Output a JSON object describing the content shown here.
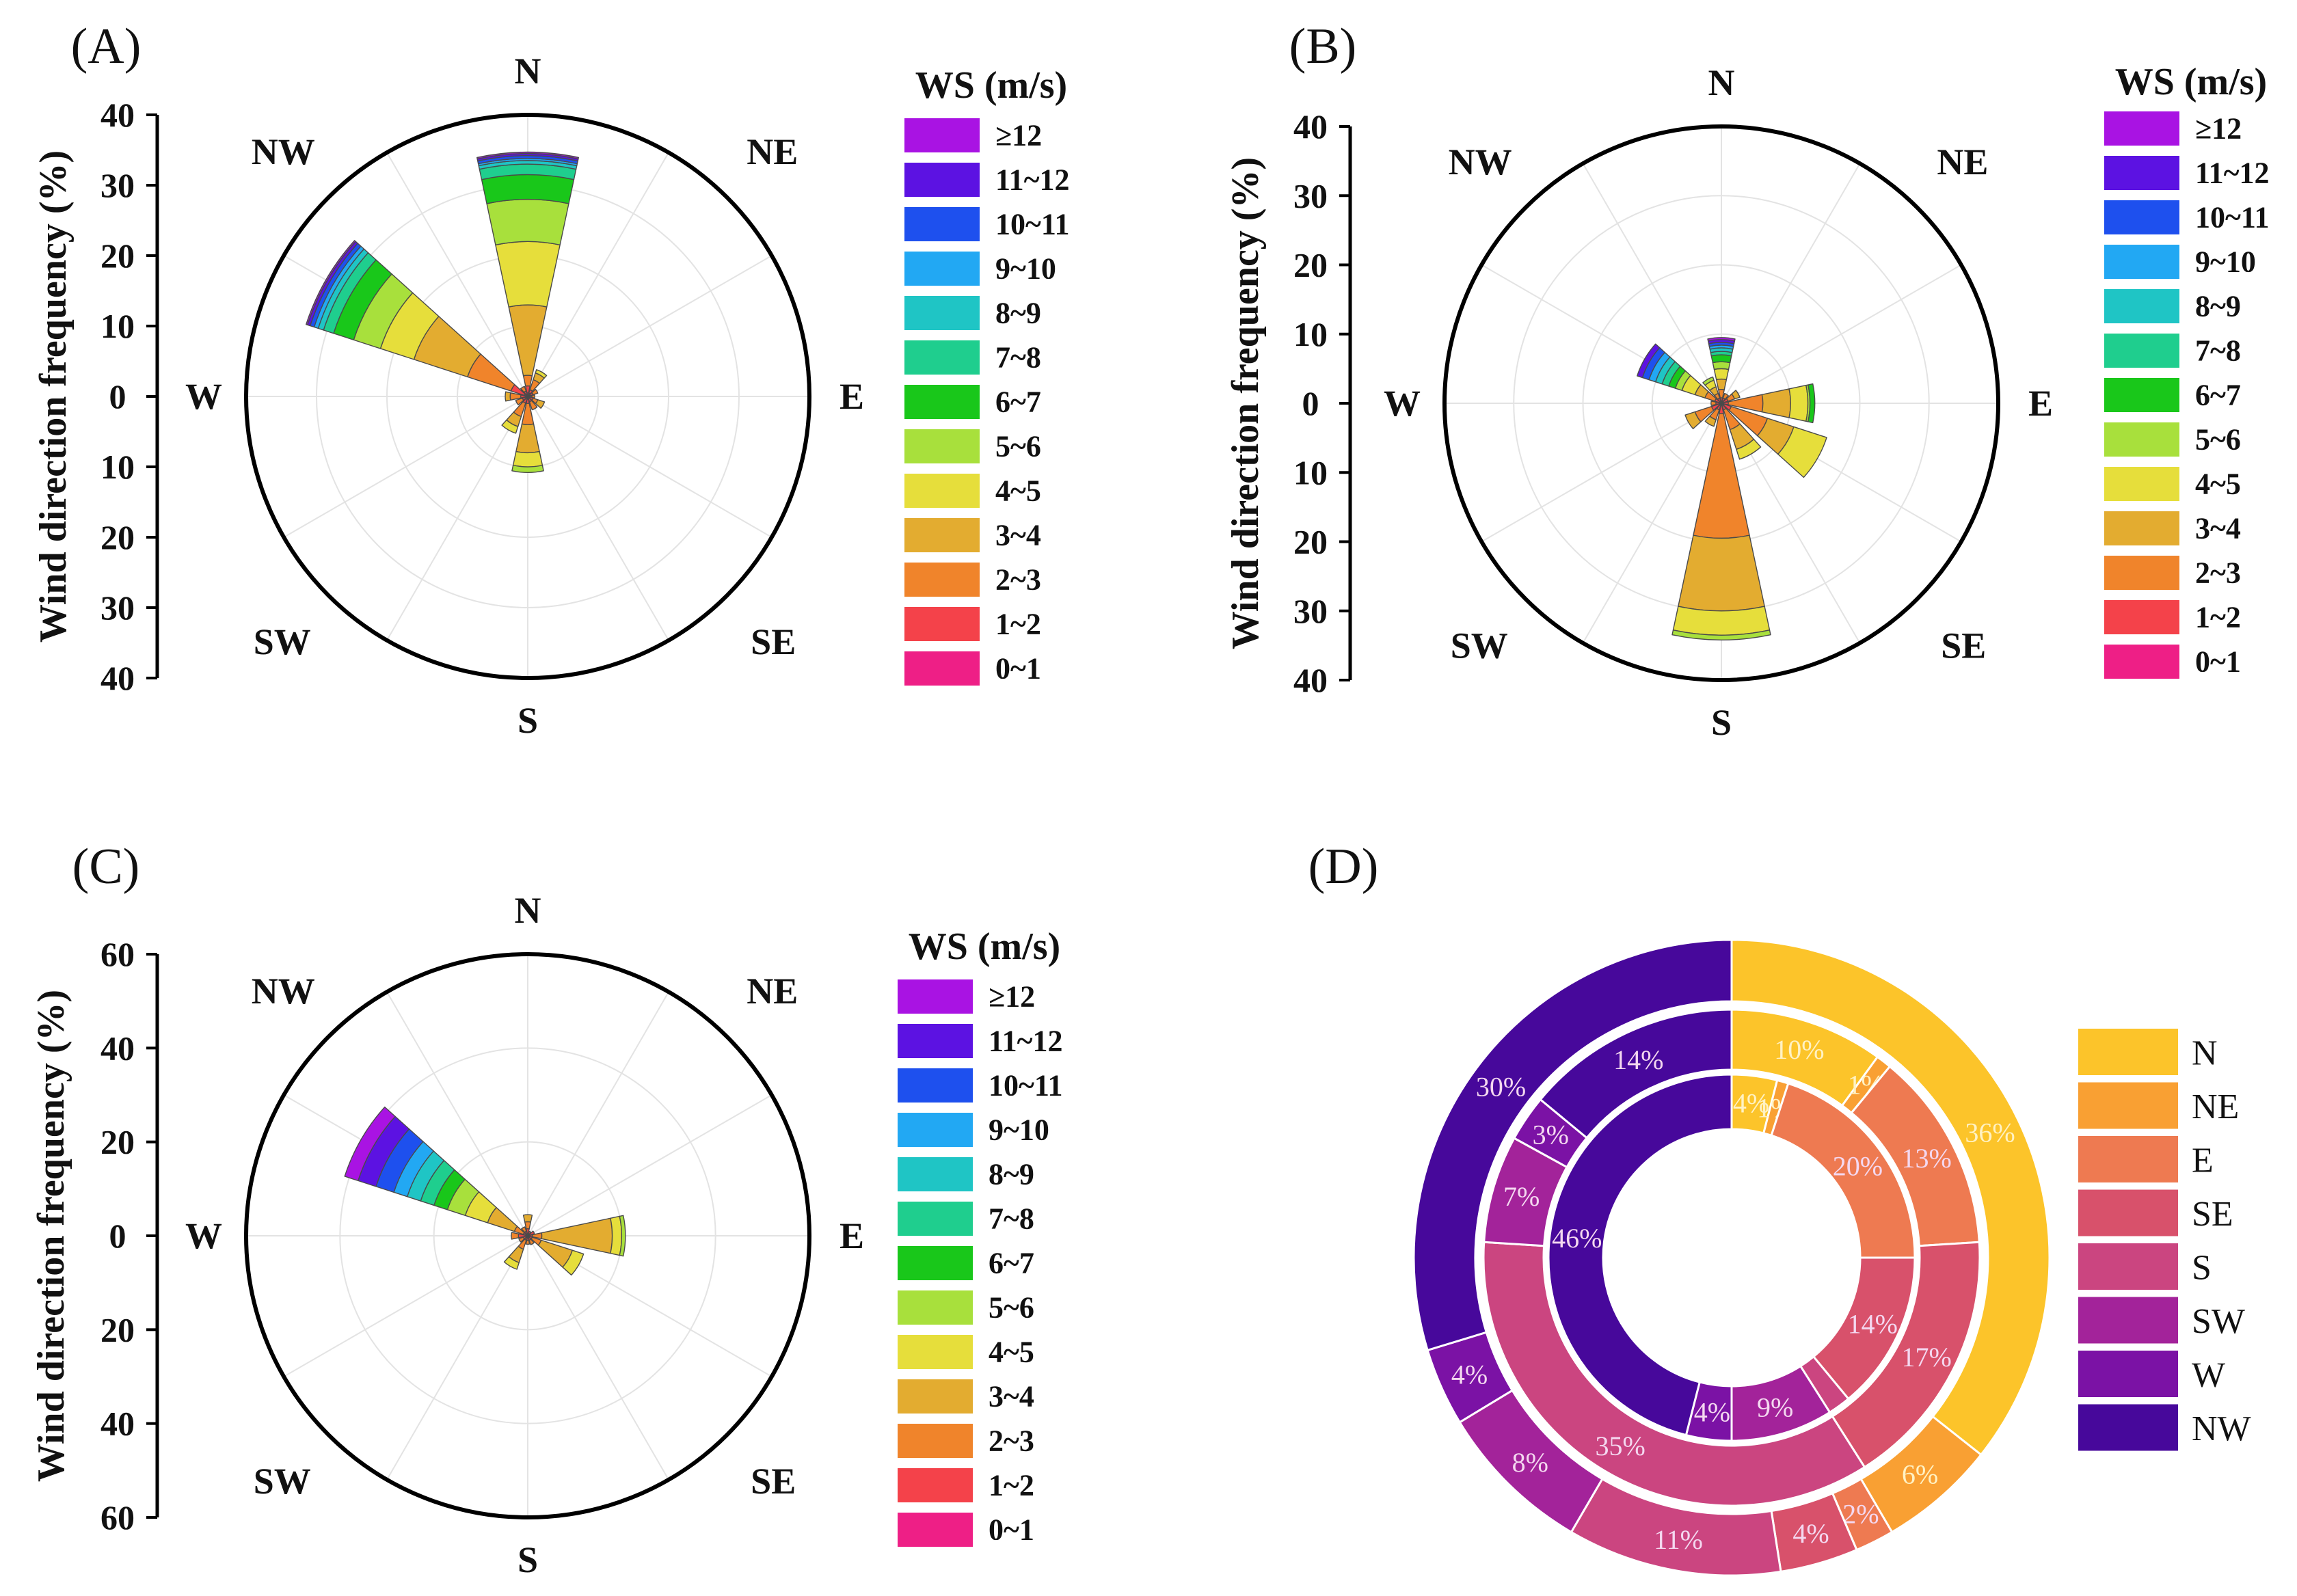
{
  "figure": {
    "ws_scale": {
      "title": "WS (m/s)",
      "classes": [
        "0~1",
        "1~2",
        "2~3",
        "3~4",
        "4~5",
        "5~6",
        "6~7",
        "7~8",
        "8~9",
        "9~10",
        "10~11",
        "11~12",
        "≥12"
      ],
      "colors": [
        "#ee1f86",
        "#f4424a",
        "#f0842b",
        "#e3ac30",
        "#e6de3b",
        "#a8e03c",
        "#19c71a",
        "#1fce8e",
        "#1fc5c5",
        "#22a8f3",
        "#1e50ee",
        "#5c12e2",
        "#a913e3"
      ]
    }
  },
  "chart_data": [
    {
      "type": "windrose",
      "panel_label": "(A)",
      "ylabel": "Wind direction frequency (%)",
      "r_max": 40,
      "ticks": [
        "40",
        "30",
        "20",
        "10",
        "0",
        "10",
        "20",
        "30",
        "40"
      ],
      "ring_values": [
        10,
        20,
        30
      ],
      "directions": [
        "N",
        "NE",
        "E",
        "SE",
        "S",
        "SW",
        "W",
        "NW"
      ],
      "legend_title": "WS (m/s)",
      "sectors": [
        {
          "dir": 0,
          "cum": [
            0.5,
            1.5,
            3,
            13,
            22,
            28,
            31.5,
            33,
            33.5,
            33.8,
            34.2,
            34.5,
            34.7
          ]
        },
        {
          "dir": 30,
          "cum": [
            0.5,
            1,
            2.5,
            3.5,
            4
          ]
        },
        {
          "dir": 60,
          "cum": [
            0.4,
            0.8,
            1.5
          ]
        },
        {
          "dir": 90,
          "cum": [
            0.3,
            0.6,
            1
          ]
        },
        {
          "dir": 120,
          "cum": [
            0.3,
            0.8,
            1.5,
            2.5
          ]
        },
        {
          "dir": 150,
          "cum": [
            0.3,
            0.8,
            2
          ]
        },
        {
          "dir": 180,
          "cum": [
            0.4,
            1,
            4,
            8,
            10,
            10.8
          ]
        },
        {
          "dir": 210,
          "cum": [
            0.3,
            1,
            3,
            4.5,
            5.5
          ]
        },
        {
          "dir": 240,
          "cum": [
            0.3,
            0.8,
            1.8
          ]
        },
        {
          "dir": 270,
          "cum": [
            0.3,
            1,
            2.5,
            3.2
          ]
        },
        {
          "dir": 300,
          "cum": [
            0.5,
            2.5,
            9,
            17,
            22,
            26,
            29,
            30.5,
            31.3,
            31.9,
            32.5,
            32.9,
            33.1
          ]
        },
        {
          "dir": 330,
          "cum": [
            0.3,
            0.8,
            1.5
          ]
        }
      ]
    },
    {
      "type": "windrose",
      "panel_label": "(B)",
      "ylabel": "Wind direction frequency (%)",
      "r_max": 40,
      "ticks": [
        "40",
        "30",
        "20",
        "10",
        "0",
        "10",
        "20",
        "30",
        "40"
      ],
      "ring_values": [
        10,
        20,
        30
      ],
      "directions": [
        "N",
        "NE",
        "E",
        "SE",
        "S",
        "SW",
        "W",
        "NW"
      ],
      "legend_title": "WS (m/s)",
      "sectors": [
        {
          "dir": 0,
          "cum": [
            0.3,
            0.8,
            2,
            3.5,
            5,
            6,
            7,
            7.5,
            8,
            8.4,
            8.8,
            9.2,
            9.5
          ]
        },
        {
          "dir": 30,
          "cum": [
            0.3,
            0.8,
            1.5
          ]
        },
        {
          "dir": 60,
          "cum": [
            0.3,
            1,
            2,
            2.8
          ]
        },
        {
          "dir": 90,
          "cum": [
            0.3,
            1,
            6,
            10,
            12.5,
            12.8,
            13.5
          ]
        },
        {
          "dir": 120,
          "cum": [
            0.4,
            1.5,
            7,
            11,
            16
          ]
        },
        {
          "dir": 150,
          "cum": [
            0.3,
            1,
            4,
            7,
            8.5
          ]
        },
        {
          "dir": 180,
          "cum": [
            0.3,
            1.5,
            19.5,
            30,
            33.5,
            34.2
          ]
        },
        {
          "dir": 210,
          "cum": [
            0.3,
            1,
            2.5,
            3.5
          ]
        },
        {
          "dir": 240,
          "cum": [
            0.3,
            1.5,
            4,
            5.5
          ]
        },
        {
          "dir": 270,
          "cum": [
            0.3,
            0.8,
            1.5
          ]
        },
        {
          "dir": 300,
          "cum": [
            0.3,
            1,
            2.5,
            4,
            6,
            7,
            8,
            9,
            10,
            11,
            12,
            12.8
          ]
        },
        {
          "dir": 330,
          "cum": [
            0.3,
            0.8,
            1.5,
            2.5,
            3.5,
            4
          ]
        }
      ]
    },
    {
      "type": "windrose",
      "panel_label": "(C)",
      "ylabel": "Wind direction frequency (%)",
      "r_max": 60,
      "ticks": [
        "60",
        "40",
        "20",
        "0",
        "20",
        "40",
        "60"
      ],
      "ring_values": [
        20,
        40
      ],
      "directions": [
        "N",
        "NE",
        "E",
        "SE",
        "S",
        "SW",
        "W",
        "NW"
      ],
      "legend_title": "WS (m/s)",
      "sectors": [
        {
          "dir": 0,
          "cum": [
            0.5,
            1.5,
            3,
            4.5
          ]
        },
        {
          "dir": 30,
          "cum": [
            0.3,
            1
          ]
        },
        {
          "dir": 60,
          "cum": [
            0.3,
            1.5
          ]
        },
        {
          "dir": 90,
          "cum": [
            0.3,
            1,
            3,
            18,
            20,
            20.8
          ]
        },
        {
          "dir": 120,
          "cum": [
            0.3,
            1,
            3,
            10,
            12.5
          ]
        },
        {
          "dir": 150,
          "cum": [
            0.3,
            1,
            2
          ]
        },
        {
          "dir": 180,
          "cum": [
            0.3,
            1,
            1.8
          ]
        },
        {
          "dir": 210,
          "cum": [
            0.3,
            1,
            3,
            6,
            7.5
          ]
        },
        {
          "dir": 240,
          "cum": [
            0.3,
            1,
            2
          ]
        },
        {
          "dir": 270,
          "cum": [
            0.3,
            2,
            3.5
          ]
        },
        {
          "dir": 300,
          "cum": [
            0.3,
            1,
            3,
            9,
            14,
            18,
            21,
            24,
            27,
            30,
            34,
            38,
            41
          ]
        },
        {
          "dir": 330,
          "cum": [
            0.3,
            1,
            2
          ]
        }
      ]
    },
    {
      "type": "nested-donut",
      "panel_label": "(D)",
      "legend": [
        "N",
        "NE",
        "E",
        "SE",
        "S",
        "SW",
        "W",
        "NW"
      ],
      "colors": {
        "N": "#fcc42a",
        "NE": "#f9a033",
        "E": "#ee7a51",
        "SE": "#d8516b",
        "S": "#cb4580",
        "SW": "#a3239a",
        "W": "#7b12a5",
        "NW": "#47089b"
      },
      "rings": [
        {
          "name": "outer",
          "slices": [
            {
              "dir": "N",
              "value": 36,
              "label": "36%"
            },
            {
              "dir": "NE",
              "value": 6,
              "label": "6%"
            },
            {
              "dir": "E",
              "value": 2,
              "label": "2%"
            },
            {
              "dir": "SE",
              "value": 4,
              "label": "4%"
            },
            {
              "dir": "S",
              "value": 11,
              "label": "11%"
            },
            {
              "dir": "SW",
              "value": 8,
              "label": "8%"
            },
            {
              "dir": "W",
              "value": 4,
              "label": "4%"
            },
            {
              "dir": "NW",
              "value": 30,
              "label": "30%"
            }
          ]
        },
        {
          "name": "middle",
          "slices": [
            {
              "dir": "N",
              "value": 10,
              "label": "10%"
            },
            {
              "dir": "NE",
              "value": 1,
              "label": "1%"
            },
            {
              "dir": "E",
              "value": 13,
              "label": "13%"
            },
            {
              "dir": "SE",
              "value": 17,
              "label": "17%"
            },
            {
              "dir": "S",
              "value": 35,
              "label": "35%"
            },
            {
              "dir": "SW",
              "value": 7,
              "label": "7%"
            },
            {
              "dir": "W",
              "value": 3,
              "label": "3%"
            },
            {
              "dir": "NW",
              "value": 14,
              "label": "14%"
            }
          ]
        },
        {
          "name": "inner",
          "slices": [
            {
              "dir": "N",
              "value": 4,
              "label": "4%"
            },
            {
              "dir": "NE",
              "value": 1,
              "label": "1%"
            },
            {
              "dir": "E",
              "value": 20,
              "label": "20%"
            },
            {
              "dir": "SE",
              "value": 14,
              "label": "14%"
            },
            {
              "dir": "S",
              "value": 2,
              "label": ""
            },
            {
              "dir": "SW",
              "value": 9,
              "label": "9%"
            },
            {
              "dir": "W",
              "value": 4,
              "label": "4%"
            },
            {
              "dir": "NW",
              "value": 46,
              "label": "46%"
            }
          ]
        }
      ]
    }
  ]
}
